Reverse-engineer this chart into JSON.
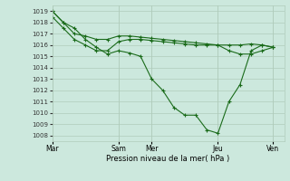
{
  "title": "",
  "xlabel": "Pression niveau de la mer( hPa )",
  "background_color": "#cce8dd",
  "grid_color": "#b0ccbb",
  "line_color": "#1a6b1a",
  "ylim": [
    1007.5,
    1019.5
  ],
  "yticks": [
    1008,
    1009,
    1010,
    1011,
    1012,
    1013,
    1014,
    1015,
    1016,
    1017,
    1018,
    1019
  ],
  "xtick_labels": [
    "Mar",
    "",
    "Sam",
    "Mer",
    "",
    "Jeu",
    "",
    "Ven"
  ],
  "xtick_positions": [
    0,
    3,
    6,
    9,
    12,
    15,
    17,
    20
  ],
  "xlim": [
    0,
    21
  ],
  "line1_x": [
    0,
    1,
    2,
    3,
    4,
    5,
    6,
    7,
    8,
    9,
    10,
    11,
    12,
    13,
    14,
    15,
    16,
    17,
    18,
    19,
    20
  ],
  "line1_y": [
    1019,
    1018,
    1017.5,
    1016.5,
    1015.8,
    1015.2,
    1015.5,
    1015.3,
    1015,
    1013,
    1012,
    1010.5,
    1009.8,
    1009.8,
    1008.5,
    1008.2,
    1011,
    1012.5,
    1015.5,
    1016,
    1015.8
  ],
  "line2_x": [
    0,
    1,
    2,
    3,
    4,
    5,
    6,
    7,
    8,
    9,
    10,
    11,
    12,
    13,
    14,
    15,
    16,
    17,
    18,
    19,
    20
  ],
  "line2_y": [
    1019,
    1018,
    1017,
    1016.8,
    1016.5,
    1016.5,
    1016.8,
    1016.8,
    1016.7,
    1016.6,
    1016.5,
    1016.4,
    1016.3,
    1016.2,
    1016.1,
    1016.0,
    1016.0,
    1016.0,
    1016.1,
    1016.0,
    1015.8
  ],
  "line3_x": [
    0,
    1,
    2,
    3,
    4,
    5,
    6,
    7,
    8,
    9,
    10,
    11,
    12,
    13,
    14,
    15,
    16,
    17,
    18,
    19,
    20
  ],
  "line3_y": [
    1018.5,
    1017.5,
    1016.5,
    1016.0,
    1015.5,
    1015.5,
    1016.3,
    1016.5,
    1016.5,
    1016.4,
    1016.3,
    1016.2,
    1016.1,
    1016.0,
    1016.0,
    1016.0,
    1015.5,
    1015.2,
    1015.2,
    1015.5,
    1015.8
  ]
}
